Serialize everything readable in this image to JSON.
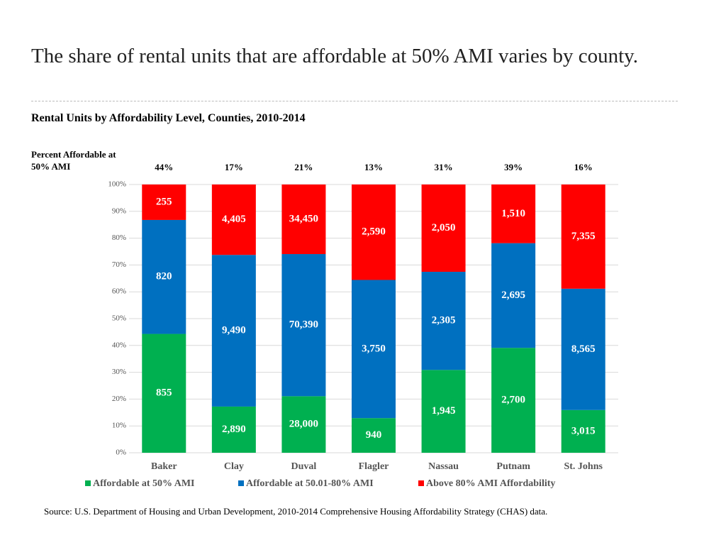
{
  "header": {
    "title": "The share of rental units that are affordable at 50% AMI varies by county."
  },
  "chart_data": {
    "type": "bar",
    "stacking": "percent",
    "title": "Rental Units by Affordability Level, Counties, 2010-2014",
    "percent_label_title": "Percent Affordable at 50% AMI",
    "percent_labels": [
      "44%",
      "17%",
      "21%",
      "13%",
      "31%",
      "39%",
      "16%"
    ],
    "categories": [
      "Baker",
      "Clay",
      "Duval",
      "Flagler",
      "Nassau",
      "Putnam",
      "St. Johns"
    ],
    "series": [
      {
        "name": "Affordable at 50% AMI",
        "color": "#00b050",
        "values": [
          855,
          2890,
          28000,
          940,
          1945,
          2700,
          3015
        ],
        "value_labels": [
          "855",
          "2,890",
          "28,000",
          "940",
          "1,945",
          "2,700",
          "3,015"
        ]
      },
      {
        "name": "Affordable at 50.01-80% AMI",
        "color": "#0070c0",
        "values": [
          820,
          9490,
          70390,
          3750,
          2305,
          2695,
          8565
        ],
        "value_labels": [
          "820",
          "9,490",
          "70,390",
          "3,750",
          "2,305",
          "2,695",
          "8,565"
        ]
      },
      {
        "name": "Above 80% AMI Affordability",
        "color": "#ff0000",
        "values": [
          255,
          4405,
          34450,
          2590,
          2050,
          1510,
          7355
        ],
        "value_labels": [
          "255",
          "4,405",
          "34,450",
          "2,590",
          "2,050",
          "1,510",
          "7,355"
        ]
      }
    ],
    "ylim": [
      0,
      100
    ],
    "yticks": [
      {
        "value": 0,
        "label": "0%"
      },
      {
        "value": 10,
        "label": "10%"
      },
      {
        "value": 20,
        "label": "20%"
      },
      {
        "value": 30,
        "label": "30%"
      },
      {
        "value": 40,
        "label": "40%"
      },
      {
        "value": 50,
        "label": "50%"
      },
      {
        "value": 60,
        "label": "60%"
      },
      {
        "value": 70,
        "label": "70%"
      },
      {
        "value": 80,
        "label": "80%"
      },
      {
        "value": 90,
        "label": "90%"
      },
      {
        "value": 100,
        "label": "100%"
      }
    ],
    "grid": true
  },
  "footer": {
    "source": "Source: U.S. Department of Housing and Urban Development, 2010-2014 Comprehensive Housing Affordability Strategy (CHAS) data."
  }
}
